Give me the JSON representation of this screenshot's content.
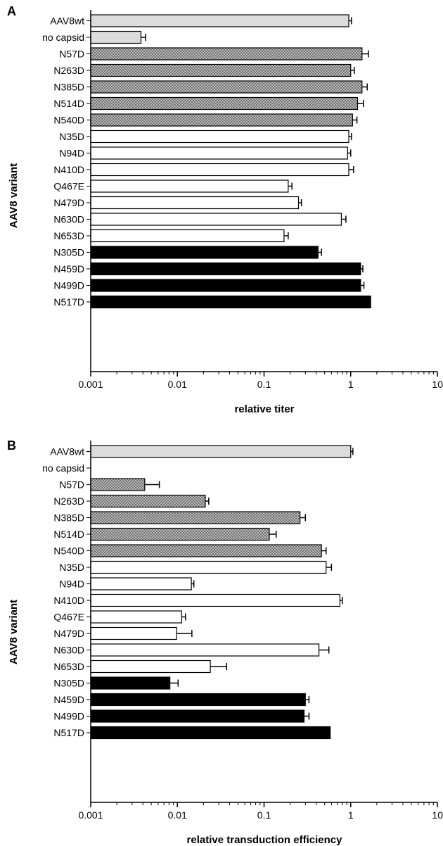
{
  "chart_data": [
    {
      "type": "bar",
      "orientation": "horizontal",
      "panel_label": "A",
      "xlabel": "relative titer",
      "ylabel": "AAV8 variant",
      "xscale": "log",
      "xlim": [
        0.001,
        10
      ],
      "xticks": [
        "0.001",
        "0.01",
        "0.1",
        "1",
        "10"
      ],
      "grid": false,
      "categories": [
        "AAV8wt",
        "no capsid",
        "N57D",
        "N263D",
        "N385D",
        "N514D",
        "N540D",
        "N35D",
        "N94D",
        "N410D",
        "Q467E",
        "N479D",
        "N630D",
        "N653D",
        "N305D",
        "N459D",
        "N499D",
        "N517D"
      ],
      "groups": [
        "control",
        "control",
        "hatched",
        "hatched",
        "hatched",
        "hatched",
        "hatched",
        "open",
        "open",
        "open",
        "open",
        "open",
        "open",
        "open",
        "solid",
        "solid",
        "solid",
        "solid"
      ],
      "values": [
        0.95,
        0.0038,
        1.35,
        1.0,
        1.35,
        1.2,
        1.05,
        0.95,
        0.92,
        0.95,
        0.19,
        0.25,
        0.78,
        0.17,
        0.42,
        1.3,
        1.3,
        1.7
      ],
      "error_upper": [
        1.02,
        0.0043,
        1.6,
        1.1,
        1.55,
        1.4,
        1.18,
        1.02,
        1.0,
        1.08,
        0.21,
        0.27,
        0.88,
        0.19,
        0.46,
        1.38,
        1.42,
        null
      ]
    },
    {
      "type": "bar",
      "orientation": "horizontal",
      "panel_label": "B",
      "xlabel": "relative transduction efficiency",
      "ylabel": "AAV8 variant",
      "xscale": "log",
      "xlim": [
        0.001,
        10
      ],
      "xticks": [
        "0.001",
        "0.01",
        "0.1",
        "1",
        "10"
      ],
      "grid": false,
      "categories": [
        "AAV8wt",
        "no capsid",
        "N57D",
        "N263D",
        "N385D",
        "N514D",
        "N540D",
        "N35D",
        "N94D",
        "N410D",
        "Q467E",
        "N479D",
        "N630D",
        "N653D",
        "N305D",
        "N459D",
        "N499D",
        "N517D"
      ],
      "groups": [
        "control",
        "control",
        "hatched",
        "hatched",
        "hatched",
        "hatched",
        "hatched",
        "open",
        "open",
        "open",
        "open",
        "open",
        "open",
        "open",
        "solid",
        "solid",
        "solid",
        "solid"
      ],
      "values": [
        1.0,
        null,
        0.0042,
        0.021,
        0.26,
        0.115,
        0.46,
        0.52,
        0.0145,
        0.75,
        0.0112,
        0.0098,
        0.43,
        0.024,
        0.0082,
        0.3,
        0.29,
        0.58
      ],
      "error_upper": [
        1.06,
        null,
        0.0062,
        0.023,
        0.3,
        0.138,
        0.52,
        0.6,
        0.0155,
        0.8,
        0.0124,
        0.0147,
        0.56,
        0.037,
        0.0102,
        0.33,
        0.33,
        null
      ]
    }
  ],
  "colors": {
    "control": "#dcdcdc",
    "hatched": "#a8a8a8",
    "open": "#ffffff",
    "solid": "#000000",
    "stroke": "#000000"
  }
}
